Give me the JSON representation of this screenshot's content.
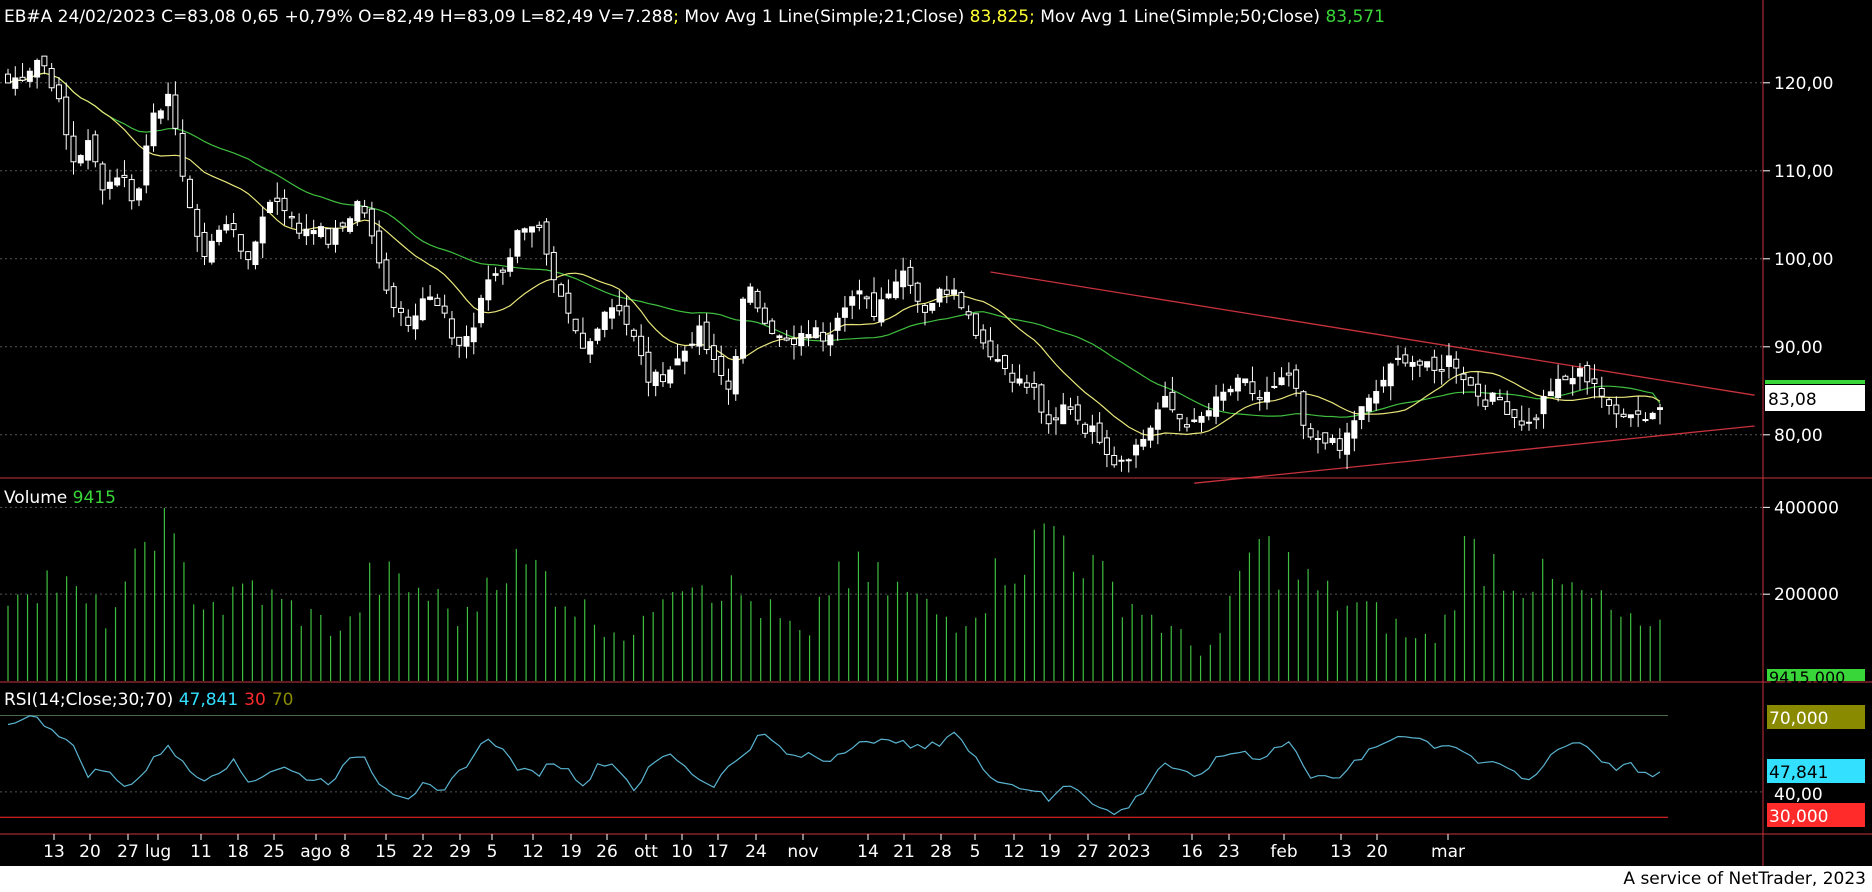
{
  "header": {
    "symbol_info": "EB#A 24/02/2023 C=83,08 0,65 +0,79% O=82,49 H=83,09 L=82,49 V=7.288",
    "sep1": ";",
    "ma21_label": " Mov Avg 1 Line(Simple;21;Close) ",
    "ma21_value": "83,825",
    "sep2": ";",
    "ma50_label": " Mov Avg 1 Line(Simple;50;Close) ",
    "ma50_value": "83,571"
  },
  "volume_header": {
    "label": "Volume ",
    "value": "9415"
  },
  "rsi_header": {
    "label": "RSI(14;Close;30;70) ",
    "value": "47,841",
    "lower": "30",
    "upper": "70"
  },
  "badges": {
    "price": "83,08",
    "volume": "9415,000",
    "rsi_upper": "70,000",
    "rsi_value": "47,841",
    "rsi_lower": "30,000"
  },
  "footer": {
    "credit": "A service of NetTrader, 2023"
  },
  "colors": {
    "background": "#000000",
    "candle": "#ffffff",
    "ma21": "#e8e67a",
    "ma50": "#3fbf3f",
    "volume": "#3fbf3f",
    "rsi": "#5ab4d0",
    "trendline": "#c8323c",
    "grid": "#555555",
    "text": "#ffffff",
    "green_text": "#39d639",
    "yellow_text": "#ffff33",
    "cyan_text": "#33e0ff",
    "red_text": "#ff2a2a",
    "olive": "#8a8a00"
  },
  "chart_data": [
    {
      "type": "candlestick",
      "title": "EB#A",
      "y_ticks": [
        "80,00",
        "90,00",
        "100,00",
        "110,00",
        "120,00"
      ],
      "ylim": [
        76,
        126
      ],
      "x_ticks": [
        "13",
        "20",
        "27",
        "lug",
        "11",
        "18",
        "25",
        "ago",
        "8",
        "15",
        "22",
        "29",
        "5",
        "12",
        "19",
        "26",
        "ott",
        "10",
        "17",
        "24",
        "nov",
        "14",
        "21",
        "28",
        "5",
        "12",
        "19",
        "27",
        "2023",
        "16",
        "23",
        "feb",
        "13",
        "20",
        "mar"
      ],
      "grid": "horizontal dotted",
      "last_close": 83.08,
      "ma21_last": 83.825,
      "ma50_last": 83.571,
      "anchor_closes": [
        120,
        121,
        123,
        119,
        111,
        113,
        108,
        110,
        106,
        117,
        118,
        109,
        100,
        103,
        104,
        99,
        106,
        107,
        103,
        104,
        102,
        104,
        107,
        100,
        95,
        93,
        96,
        94,
        90,
        92,
        98,
        99,
        104,
        104,
        97,
        93,
        89,
        94,
        95,
        91,
        86,
        87,
        89,
        92,
        88,
        85,
        97,
        94,
        91,
        90,
        92,
        91,
        95,
        96,
        94,
        97,
        99,
        94,
        96,
        97,
        93,
        90,
        88,
        86,
        85,
        80,
        84,
        81,
        80,
        77,
        78,
        80,
        84,
        82,
        81,
        83,
        85,
        86,
        84,
        85,
        87,
        79,
        80,
        78,
        82,
        84,
        87,
        89,
        88,
        87,
        89,
        86,
        84,
        84,
        82,
        81,
        85,
        86,
        87,
        86,
        82,
        83,
        82,
        83.08
      ],
      "trendlines": [
        {
          "from": [
            98.5,
            "nov"
          ],
          "to": [
            84.5,
            "mar"
          ],
          "role": "resistance"
        },
        {
          "from": [
            74.5,
            "5 dic"
          ],
          "to": [
            81,
            "mar"
          ],
          "role": "support"
        }
      ]
    },
    {
      "type": "bar",
      "title": "Volume",
      "y_ticks": [
        "200000",
        "400000"
      ],
      "ylim": [
        0,
        440000
      ],
      "last_value": 9415,
      "anchor_values": [
        210000,
        240000,
        230000,
        180000,
        150000,
        200000,
        400000,
        260000,
        190000,
        170000,
        220000,
        180000,
        160000,
        130000,
        120000,
        240000,
        220000,
        210000,
        170000,
        140000,
        280000,
        260000,
        250000,
        190000,
        150000,
        120000,
        100000,
        240000,
        260000,
        230000,
        200000,
        170000,
        130000,
        90000,
        260000,
        240000,
        220000,
        200000,
        160000,
        140000,
        180000,
        270000,
        290000,
        360000,
        300000,
        230000,
        190000,
        150000,
        110000,
        70000,
        100000,
        300000,
        290000,
        250000,
        200000,
        180000,
        160000,
        130000,
        90000,
        110000,
        300000,
        280000,
        240000,
        230000,
        210000,
        190000,
        160000,
        120000,
        90000
      ]
    },
    {
      "type": "line",
      "title": "RSI(14;Close;30;70)",
      "y_ticks": [
        "40,00"
      ],
      "ylim": [
        25,
        80
      ],
      "levels": [
        30,
        70
      ],
      "last_value": 47.841,
      "anchor_values": [
        66,
        70,
        68,
        64,
        58,
        47,
        49,
        43,
        44,
        52,
        59,
        50,
        45,
        48,
        52,
        44,
        47,
        50,
        47,
        45,
        44,
        50,
        56,
        45,
        40,
        38,
        43,
        38,
        47,
        54,
        62,
        55,
        48,
        47,
        52,
        48,
        43,
        52,
        50,
        41,
        49,
        55,
        52,
        45,
        43,
        50,
        56,
        63,
        58,
        53,
        55,
        52,
        56,
        60,
        58,
        62,
        58,
        57,
        59,
        64,
        55,
        48,
        44,
        42,
        41,
        36,
        44,
        40,
        34,
        31,
        35,
        42,
        52,
        48,
        45,
        51,
        55,
        56,
        53,
        57,
        60,
        46,
        48,
        44,
        52,
        56,
        60,
        63,
        61,
        58,
        59,
        55,
        50,
        51,
        47,
        44,
        54,
        58,
        60,
        55,
        49,
        51,
        46,
        47.8
      ]
    }
  ]
}
